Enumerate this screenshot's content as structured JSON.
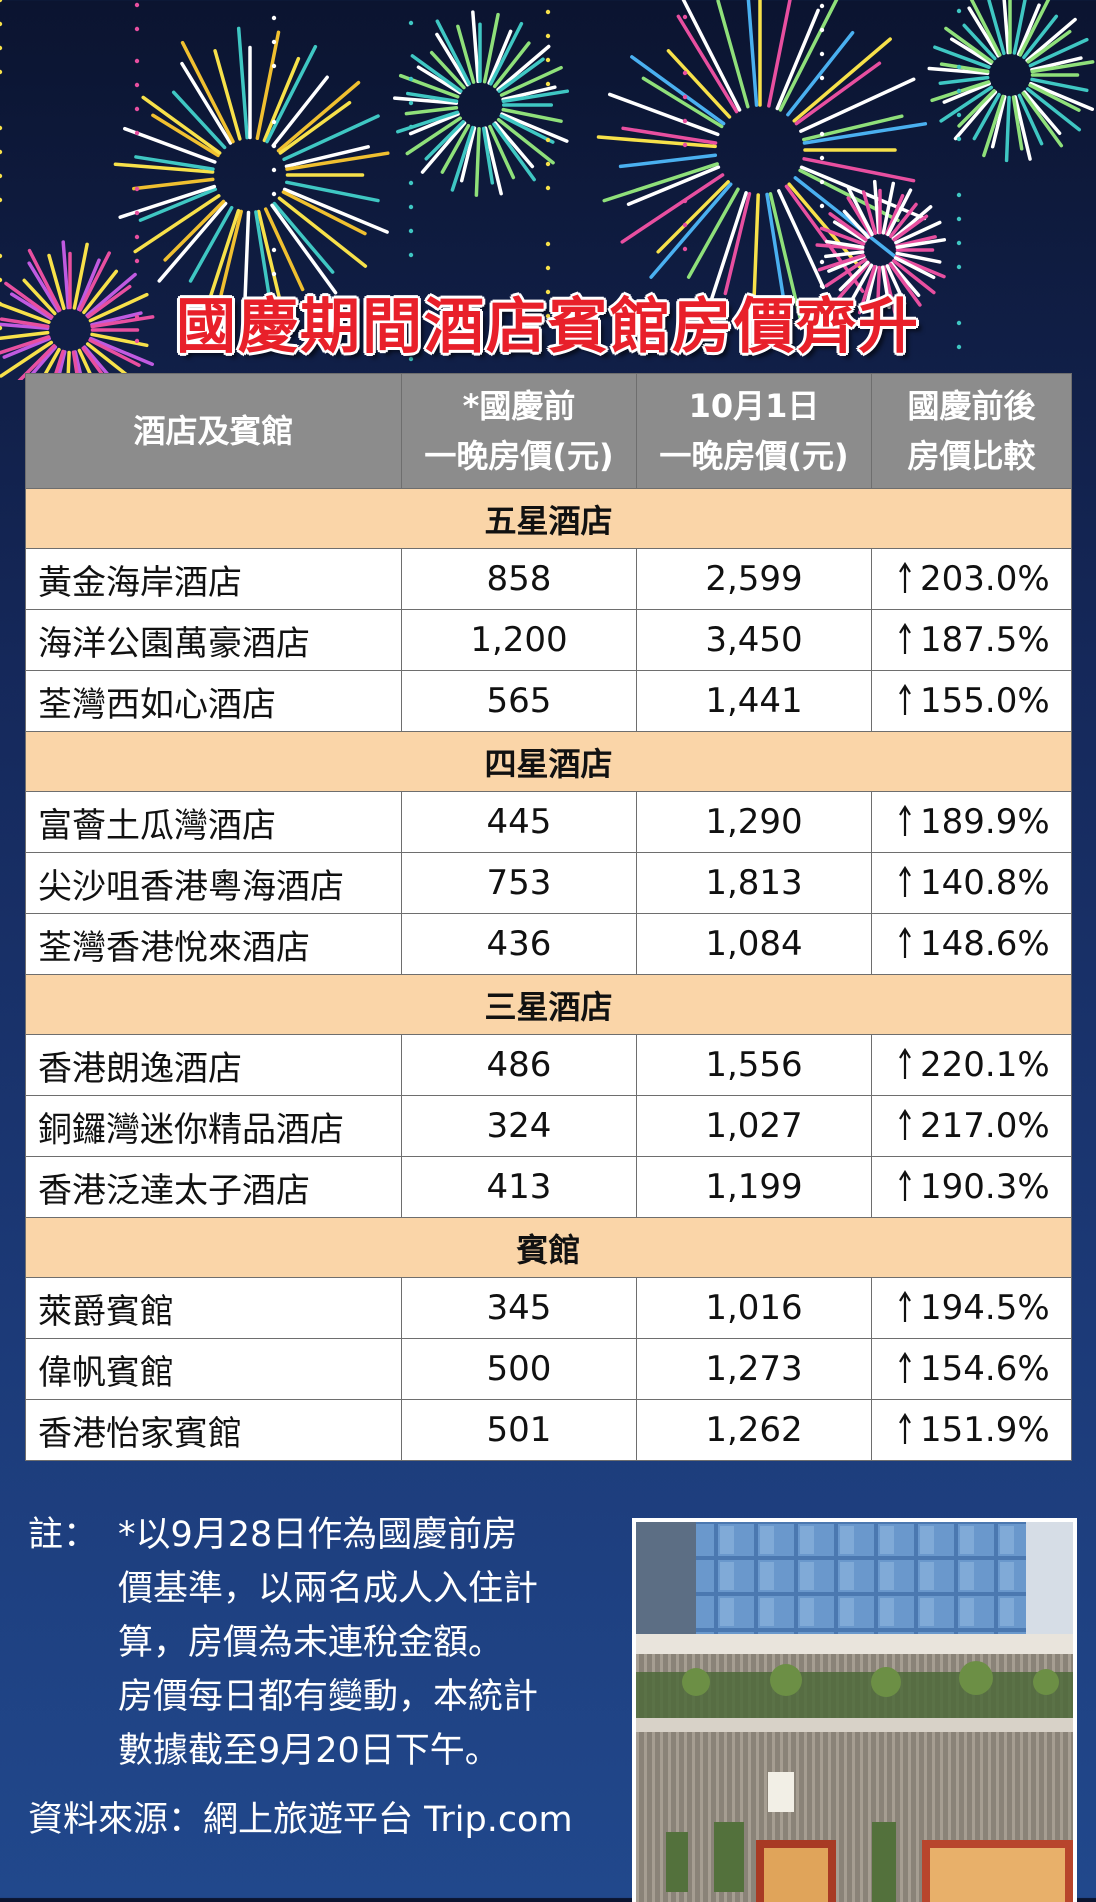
{
  "title": "國慶期間酒店賓館房價齊升",
  "table": {
    "headers": [
      {
        "line1": "酒店及賓館",
        "line2": ""
      },
      {
        "line1": "*國慶前",
        "line2": "一晚房價(元)"
      },
      {
        "line1": "10月1日",
        "line2": "一晚房價(元)"
      },
      {
        "line1": "國慶前後",
        "line2": "房價比較"
      }
    ],
    "groups": [
      {
        "category": "五星酒店",
        "rows": [
          {
            "name": "黃金海岸酒店",
            "before": "858",
            "oct1": "2,599",
            "change": "203.0%"
          },
          {
            "name": "海洋公園萬豪酒店",
            "before": "1,200",
            "oct1": "3,450",
            "change": "187.5%"
          },
          {
            "name": "荃灣西如心酒店",
            "before": "565",
            "oct1": "1,441",
            "change": "155.0%"
          }
        ]
      },
      {
        "category": "四星酒店",
        "rows": [
          {
            "name": "富薈土瓜灣酒店",
            "before": "445",
            "oct1": "1,290",
            "change": "189.9%"
          },
          {
            "name": "尖沙咀香港粵海酒店",
            "before": "753",
            "oct1": "1,813",
            "change": "140.8%"
          },
          {
            "name": "荃灣香港悅來酒店",
            "before": "436",
            "oct1": "1,084",
            "change": "148.6%"
          }
        ]
      },
      {
        "category": "三星酒店",
        "rows": [
          {
            "name": "香港朗逸酒店",
            "before": "486",
            "oct1": "1,556",
            "change": "220.1%"
          },
          {
            "name": "銅鑼灣迷你精品酒店",
            "before": "324",
            "oct1": "1,027",
            "change": "217.0%"
          },
          {
            "name": "香港泛達太子酒店",
            "before": "413",
            "oct1": "1,199",
            "change": "190.3%"
          }
        ]
      },
      {
        "category": "賓館",
        "rows": [
          {
            "name": "萊爵賓館",
            "before": "345",
            "oct1": "1,016",
            "change": "194.5%"
          },
          {
            "name": "偉帆賓館",
            "before": "500",
            "oct1": "1,273",
            "change": "154.6%"
          },
          {
            "name": "香港怡家賓館",
            "before": "501",
            "oct1": "1,262",
            "change": "151.9%"
          }
        ]
      }
    ]
  },
  "notes": {
    "label": "註：",
    "lines": [
      "*以9月28日作為國慶前房",
      "價基準，以兩名成人入住計",
      "算，房價為未連稅金額。",
      "房價每日都有變動，本統計",
      "數據截至9月20日下午。"
    ]
  },
  "source": "資料來源：網上旅遊平台 Trip.com",
  "colors": {
    "title": "#e8202a",
    "header_bg": "#8c8c8c",
    "category_bg": "#fad5a8",
    "background_top": "#0b1430",
    "background_bottom": "#21488c"
  },
  "icons": {
    "change_arrow": "up-arrow-icon",
    "photo": "hotel-building-photo"
  }
}
